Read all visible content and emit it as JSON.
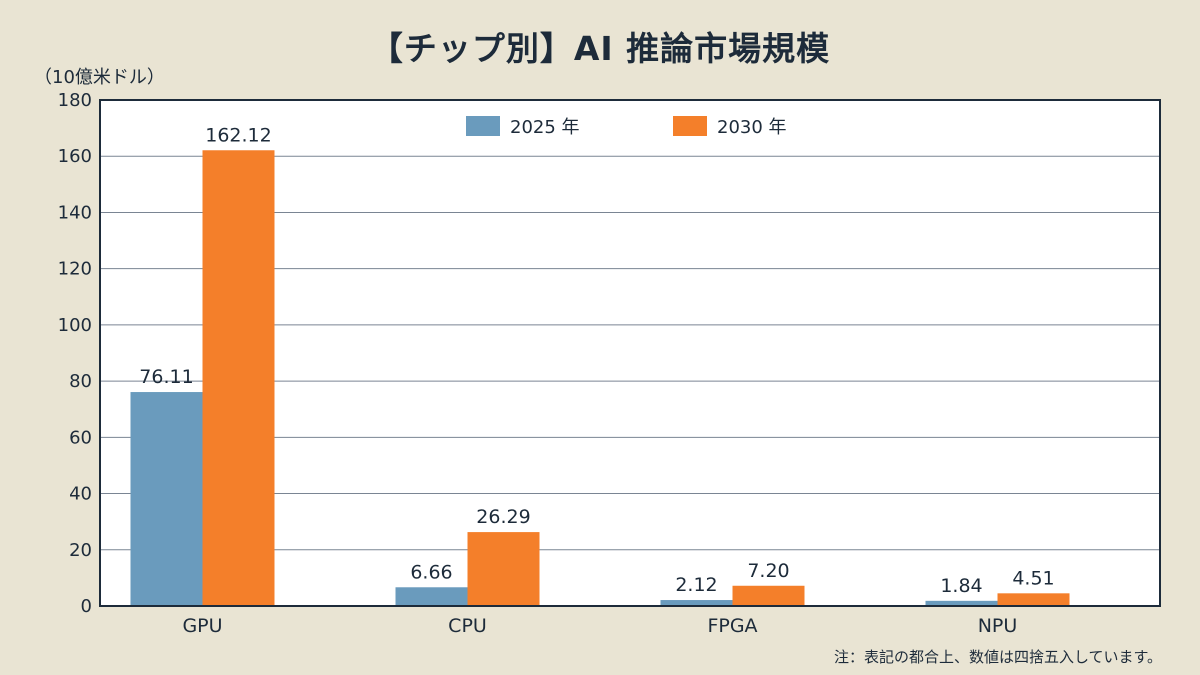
{
  "chart_data": {
    "type": "bar",
    "title": "【チップ別】AI 推論市場規模",
    "ylabel": "（10億米ドル）",
    "xlabel": "",
    "categories": [
      "GPU",
      "CPU",
      "FPGA",
      "NPU"
    ],
    "series": [
      {
        "name": "2025 年",
        "color": "#6a9bbd",
        "values": [
          76.11,
          6.66,
          2.12,
          1.84
        ],
        "labels": [
          "76.11",
          "6.66",
          "2.12",
          "1.84"
        ]
      },
      {
        "name": "2030 年",
        "color": "#f47f2a",
        "values": [
          162.12,
          26.29,
          7.2,
          4.51
        ],
        "labels": [
          "162.12",
          "26.29",
          "7.20",
          "4.51"
        ]
      }
    ],
    "ylim": [
      0,
      180
    ],
    "yticks": [
      0,
      20,
      40,
      60,
      80,
      100,
      120,
      140,
      160,
      180
    ],
    "grid": true,
    "legend": "top-center"
  },
  "footnote": "注：表記の都合上、数値は四捨五入しています。"
}
